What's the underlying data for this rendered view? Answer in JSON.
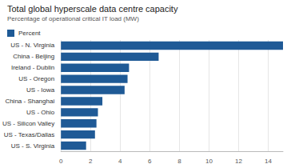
{
  "chart_data": {
    "type": "bar",
    "orientation": "horizontal",
    "title": "Total global hyperscale data centre capacity",
    "subtitle": "Percentage of operational critical IT load (MW)",
    "categories": [
      "US - N. Virginia",
      "China - Beijing",
      "Ireland - Dublin",
      "US - Oregon",
      "US - Iowa",
      "China - Shanghai",
      "US - Ohio",
      "US - Silicon Valley",
      "US - Texas/Dallas",
      "US - S. Virginia"
    ],
    "series": [
      {
        "name": "Percent",
        "color": "#1f5a96",
        "values": [
          15,
          6.6,
          4.6,
          4.5,
          4.3,
          2.8,
          2.5,
          2.4,
          2.3,
          1.7
        ]
      }
    ],
    "xlim": [
      0,
      15
    ],
    "xticks": [
      0,
      2,
      4,
      6,
      8,
      10,
      12,
      14
    ],
    "grid": true,
    "legend": "top-left"
  }
}
